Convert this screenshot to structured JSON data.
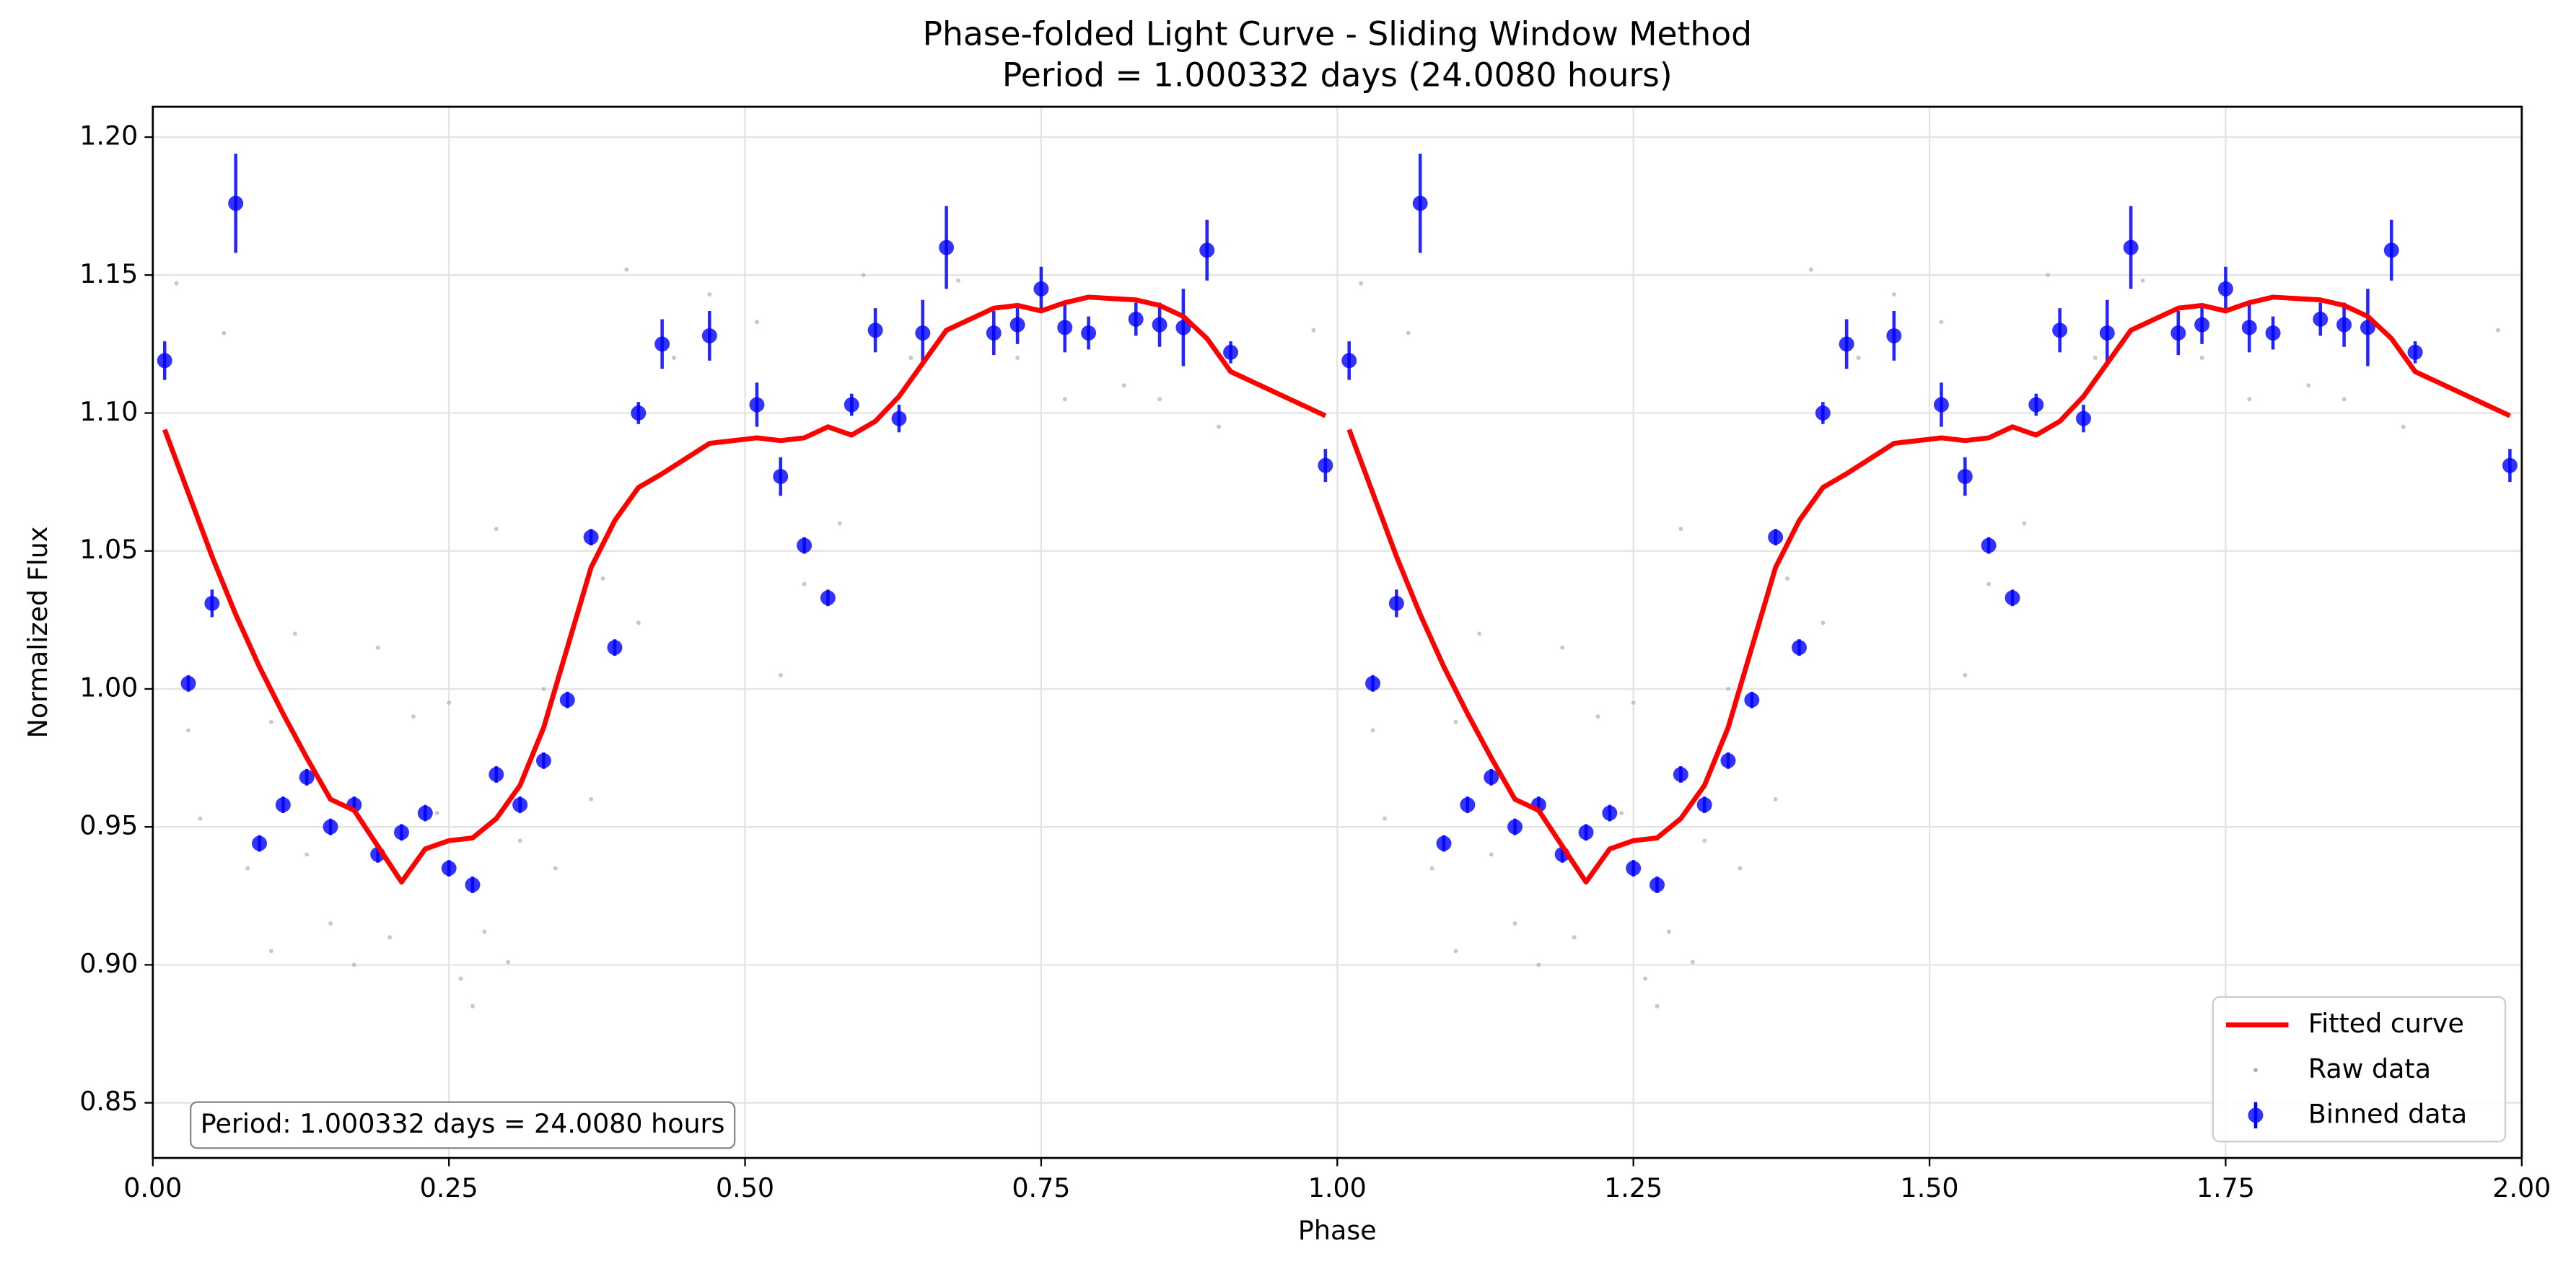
{
  "chart_data": {
    "type": "scatter",
    "title": "Phase-folded Light Curve - Sliding Window Method",
    "subtitle": "Period = 1.000332 days (24.0080 hours)",
    "x_label": "Phase",
    "y_label": "Normalized Flux",
    "annotation": "Period: 1.000332 days = 24.0080 hours",
    "xlim": [
      0,
      2
    ],
    "ylim": [
      0.83,
      1.211
    ],
    "xticks": [
      {
        "value": 0,
        "label": "0.00"
      },
      0.25,
      {
        "value": 0.5,
        "label": "0.50"
      },
      0.75,
      {
        "value": 1,
        "label": "1.00"
      },
      1.25,
      {
        "value": 1.5,
        "label": "1.50"
      },
      1.75,
      {
        "value": 2,
        "label": "2.00"
      }
    ],
    "yticks": [
      0.85,
      {
        "value": 0.9,
        "label": "0.90"
      },
      0.95,
      {
        "value": 1,
        "label": "1.00"
      },
      1.05,
      {
        "value": 1.1,
        "label": "1.10"
      },
      1.15,
      {
        "value": 1.2,
        "label": "1.20"
      }
    ],
    "grid": true,
    "legend": "lower right",
    "series": [
      {
        "name": "Fitted curve",
        "type": "line",
        "color": "#ff0000",
        "x": [
          0.01,
          0.03,
          0.05,
          0.07,
          0.09,
          0.11,
          0.13,
          0.15,
          0.17,
          0.19,
          0.21,
          0.23,
          0.25,
          0.27,
          0.29,
          0.31,
          0.33,
          0.35,
          0.37,
          0.39,
          0.41,
          0.43,
          0.47,
          0.51,
          0.53,
          0.55,
          0.57,
          0.59,
          0.61,
          0.63,
          0.65,
          0.67,
          0.71,
          0.73,
          0.75,
          0.77,
          0.79,
          0.83,
          0.85,
          0.87,
          0.89,
          0.91,
          0.99,
          null,
          1.01,
          1.03,
          1.05,
          1.07,
          1.09,
          1.11,
          1.13,
          1.15,
          1.17,
          1.19,
          1.21,
          1.23,
          1.25,
          1.27,
          1.29,
          1.31,
          1.33,
          1.35,
          1.37,
          1.39,
          1.41,
          1.43,
          1.47,
          1.51,
          1.53,
          1.55,
          1.57,
          1.59,
          1.61,
          1.63,
          1.65,
          1.67,
          1.71,
          1.73,
          1.75,
          1.77,
          1.79,
          1.83,
          1.85,
          1.87,
          1.89,
          1.91,
          1.99
        ],
        "values": [
          1.094,
          1.071,
          1.048,
          1.027,
          1.008,
          0.991,
          0.975,
          0.96,
          0.956,
          0.943,
          0.93,
          0.942,
          0.945,
          0.946,
          0.953,
          0.965,
          0.986,
          1.015,
          1.044,
          1.061,
          1.073,
          1.078,
          1.089,
          1.091,
          1.09,
          1.091,
          1.095,
          1.092,
          1.097,
          1.106,
          1.118,
          1.13,
          1.138,
          1.139,
          1.137,
          1.14,
          1.142,
          1.141,
          1.139,
          1.135,
          1.127,
          1.115,
          1.099,
          null,
          1.094,
          1.071,
          1.048,
          1.027,
          1.008,
          0.991,
          0.975,
          0.96,
          0.956,
          0.943,
          0.93,
          0.942,
          0.945,
          0.946,
          0.953,
          0.965,
          0.986,
          1.015,
          1.044,
          1.061,
          1.073,
          1.078,
          1.089,
          1.091,
          1.09,
          1.091,
          1.095,
          1.092,
          1.097,
          1.106,
          1.118,
          1.13,
          1.138,
          1.139,
          1.137,
          1.14,
          1.142,
          1.141,
          1.139,
          1.135,
          1.127,
          1.115,
          1.099
        ]
      },
      {
        "name": "Raw data",
        "type": "scatter",
        "color": "#b0b0b0",
        "x": [
          0.02,
          0.03,
          0.04,
          0.06,
          0.08,
          0.1,
          0.1,
          0.12,
          0.13,
          0.15,
          0.17,
          0.19,
          0.2,
          0.22,
          0.24,
          0.25,
          0.26,
          0.27,
          0.28,
          0.29,
          0.3,
          0.31,
          0.33,
          0.34,
          0.37,
          0.38,
          0.4,
          0.41,
          0.44,
          0.47,
          0.51,
          0.53,
          0.55,
          0.58,
          0.6,
          0.64,
          0.68,
          0.73,
          0.77,
          0.82,
          0.85,
          0.9,
          0.98,
          1.02,
          1.03,
          1.04,
          1.06,
          1.08,
          1.1,
          1.1,
          1.12,
          1.13,
          1.15,
          1.17,
          1.19,
          1.2,
          1.22,
          1.24,
          1.25,
          1.26,
          1.27,
          1.28,
          1.29,
          1.3,
          1.31,
          1.33,
          1.34,
          1.37,
          1.38,
          1.4,
          1.41,
          1.44,
          1.47,
          1.51,
          1.53,
          1.55,
          1.58,
          1.6,
          1.64,
          1.68,
          1.73,
          1.77,
          1.82,
          1.85,
          1.9,
          1.98
        ],
        "values": [
          1.147,
          0.985,
          0.953,
          1.129,
          0.935,
          0.905,
          0.988,
          1.02,
          0.94,
          0.915,
          0.9,
          1.015,
          0.91,
          0.99,
          0.955,
          0.995,
          0.895,
          0.885,
          0.912,
          1.058,
          0.901,
          0.945,
          1.0,
          0.935,
          0.96,
          1.04,
          1.152,
          1.024,
          1.12,
          1.143,
          1.133,
          1.005,
          1.038,
          1.06,
          1.15,
          1.12,
          1.148,
          1.12,
          1.105,
          1.11,
          1.105,
          1.095,
          1.13,
          1.147,
          0.985,
          0.953,
          1.129,
          0.935,
          0.905,
          0.988,
          1.02,
          0.94,
          0.915,
          0.9,
          1.015,
          0.91,
          0.99,
          0.955,
          0.995,
          0.895,
          0.885,
          0.912,
          1.058,
          0.901,
          0.945,
          1.0,
          0.935,
          0.96,
          1.04,
          1.152,
          1.024,
          1.12,
          1.143,
          1.133,
          1.005,
          1.038,
          1.06,
          1.15,
          1.12,
          1.148,
          1.12,
          1.105,
          1.11,
          1.105,
          1.095,
          1.13
        ]
      },
      {
        "name": "Binned data",
        "type": "errorbar",
        "color": "#0000ff",
        "x": [
          0.01,
          0.03,
          0.05,
          0.07,
          0.09,
          0.11,
          0.13,
          0.15,
          0.17,
          0.19,
          0.21,
          0.23,
          0.25,
          0.27,
          0.29,
          0.31,
          0.33,
          0.35,
          0.37,
          0.39,
          0.41,
          0.43,
          0.47,
          0.51,
          0.53,
          0.55,
          0.57,
          0.59,
          0.61,
          0.63,
          0.65,
          0.67,
          0.71,
          0.73,
          0.75,
          0.77,
          0.79,
          0.83,
          0.85,
          0.87,
          0.89,
          0.91,
          0.99,
          1.01,
          1.03,
          1.05,
          1.07,
          1.09,
          1.11,
          1.13,
          1.15,
          1.17,
          1.19,
          1.21,
          1.23,
          1.25,
          1.27,
          1.29,
          1.31,
          1.33,
          1.35,
          1.37,
          1.39,
          1.41,
          1.43,
          1.47,
          1.51,
          1.53,
          1.55,
          1.57,
          1.59,
          1.61,
          1.63,
          1.65,
          1.67,
          1.71,
          1.73,
          1.75,
          1.77,
          1.79,
          1.83,
          1.85,
          1.87,
          1.89,
          1.91,
          1.99
        ],
        "values": [
          1.119,
          1.002,
          1.031,
          1.176,
          0.944,
          0.958,
          0.968,
          0.95,
          0.958,
          0.94,
          0.948,
          0.955,
          0.935,
          0.929,
          0.969,
          0.958,
          0.974,
          0.996,
          1.055,
          1.015,
          1.1,
          1.125,
          1.128,
          1.103,
          1.077,
          1.052,
          1.033,
          1.103,
          1.13,
          1.098,
          1.129,
          1.16,
          1.129,
          1.132,
          1.145,
          1.131,
          1.129,
          1.134,
          1.132,
          1.131,
          1.159,
          1.122,
          1.081,
          1.119,
          1.002,
          1.031,
          1.176,
          0.944,
          0.958,
          0.968,
          0.95,
          0.958,
          0.94,
          0.948,
          0.955,
          0.935,
          0.929,
          0.969,
          0.958,
          0.974,
          0.996,
          1.055,
          1.015,
          1.1,
          1.125,
          1.128,
          1.103,
          1.077,
          1.052,
          1.033,
          1.103,
          1.13,
          1.098,
          1.129,
          1.16,
          1.129,
          1.132,
          1.145,
          1.131,
          1.129,
          1.134,
          1.132,
          1.131,
          1.159,
          1.122,
          1.081
        ],
        "errors": [
          0.007,
          0.003,
          0.005,
          0.018,
          0.003,
          0.003,
          0.003,
          0.003,
          0.003,
          0.003,
          0.003,
          0.003,
          0.003,
          0.003,
          0.003,
          0.003,
          0.003,
          0.003,
          0.003,
          0.003,
          0.004,
          0.009,
          0.009,
          0.008,
          0.007,
          0.003,
          0.003,
          0.004,
          0.008,
          0.005,
          0.012,
          0.015,
          0.008,
          0.007,
          0.008,
          0.009,
          0.006,
          0.006,
          0.008,
          0.014,
          0.011,
          0.004,
          0.006,
          0.007,
          0.003,
          0.005,
          0.018,
          0.003,
          0.003,
          0.003,
          0.003,
          0.003,
          0.003,
          0.003,
          0.003,
          0.003,
          0.003,
          0.003,
          0.003,
          0.003,
          0.003,
          0.003,
          0.003,
          0.004,
          0.009,
          0.009,
          0.008,
          0.007,
          0.003,
          0.003,
          0.004,
          0.008,
          0.005,
          0.012,
          0.015,
          0.008,
          0.007,
          0.008,
          0.009,
          0.006,
          0.006,
          0.008,
          0.014,
          0.011,
          0.004,
          0.006
        ]
      }
    ]
  }
}
